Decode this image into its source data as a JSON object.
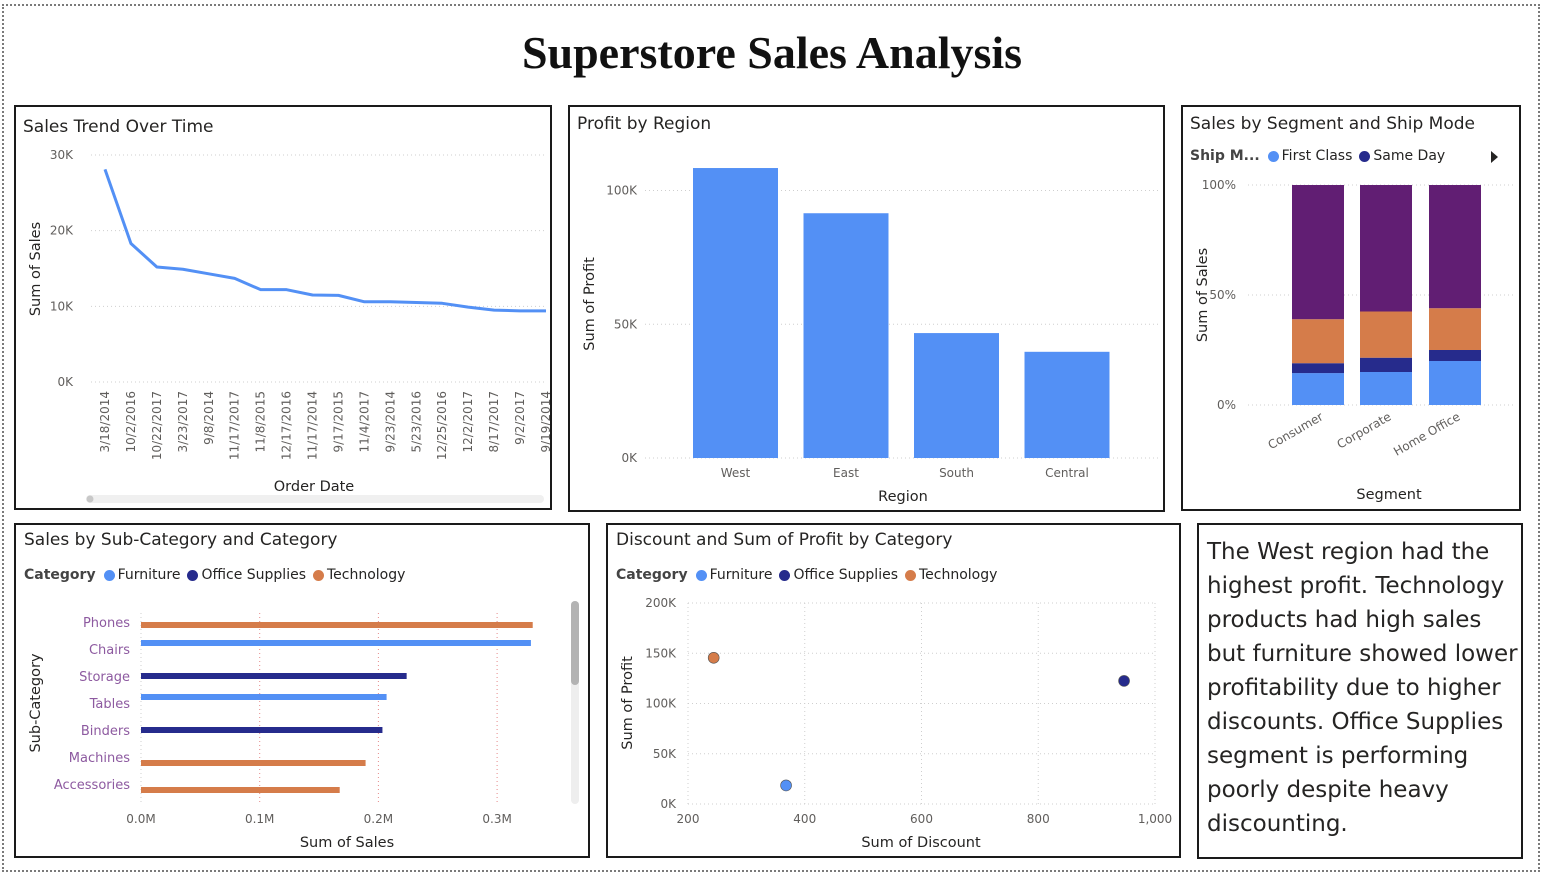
{
  "page_title": "Superstore Sales Analysis",
  "colors": {
    "blue": "#5390f5",
    "navy": "#262b8c",
    "orange": "#d57c4a",
    "purple": "#611e73",
    "axis_text": "#605e5c",
    "grid": "#dcdcdc"
  },
  "insight_text": "The West region had the highest profit. Technology products had high sales but furniture showed lower profitability due to higher discounts. Office Supplies segment is performing poorly despite heavy discounting.",
  "chart_data": [
    {
      "id": "sales_trend",
      "type": "line",
      "title": "Sales Trend Over Time",
      "xlabel": "Order Date",
      "ylabel": "Sum of Sales",
      "x": [
        "3/18/2014",
        "10/2/2016",
        "10/22/2017",
        "3/23/2017",
        "9/8/2014",
        "11/17/2017",
        "11/8/2015",
        "12/17/2016",
        "11/17/2014",
        "9/17/2015",
        "11/4/2017",
        "9/23/2014",
        "5/23/2016",
        "12/25/2016",
        "12/2/2017",
        "8/17/2017",
        "9/2/2017",
        "9/19/2014"
      ],
      "values": [
        28100,
        18300,
        15200,
        14900,
        14300,
        13700,
        12200,
        12200,
        11500,
        11450,
        10600,
        10600,
        10500,
        10400,
        9900,
        9500,
        9400,
        9400
      ],
      "yticks": [
        "0K",
        "10K",
        "20K",
        "30K"
      ],
      "ylim": [
        0,
        30000
      ],
      "grid": true
    },
    {
      "id": "profit_by_region",
      "type": "bar",
      "title": "Profit by Region",
      "xlabel": "Region",
      "ylabel": "Sum of Profit",
      "categories": [
        "West",
        "East",
        "South",
        "Central"
      ],
      "values": [
        108400,
        91500,
        46700,
        39700
      ],
      "yticks": [
        "0K",
        "50K",
        "100K"
      ],
      "ylim": [
        0,
        120000
      ],
      "grid": true
    },
    {
      "id": "segment_shipmode",
      "type": "bar",
      "stacked": "percent",
      "title": "Sales by Segment and Ship Mode",
      "xlabel": "Segment",
      "ylabel": "Sum of Sales",
      "legend_title": "Ship M...",
      "legend_visible": [
        "First Class",
        "Same Day"
      ],
      "categories": [
        "Consumer",
        "Corporate",
        "Home Office"
      ],
      "series": [
        {
          "name": "First Class",
          "color": "#5390f5",
          "values": [
            14.5,
            15.0,
            20.0
          ]
        },
        {
          "name": "Same Day",
          "color": "#262b8c",
          "values": [
            4.5,
            6.5,
            5.0
          ]
        },
        {
          "series_color": "#d57c4a",
          "values": [
            20.0,
            21.0,
            19.0
          ]
        },
        {
          "series_color": "#611e73",
          "values": [
            61.0,
            57.5,
            56.0
          ]
        }
      ],
      "yticks": [
        "0%",
        "50%",
        "100%"
      ]
    },
    {
      "id": "subcat_sales",
      "type": "bar",
      "orientation": "horizontal",
      "title": "Sales by Sub-Category and Category",
      "xlabel": "Sum of Sales",
      "ylabel": "Sub-Category",
      "legend_title": "Category",
      "legend": [
        "Furniture",
        "Office Supplies",
        "Technology"
      ],
      "categories": [
        "Phones",
        "Chairs",
        "Storage",
        "Tables",
        "Binders",
        "Machines",
        "Accessories"
      ],
      "bars": [
        {
          "sub": "Phones",
          "category": "Technology",
          "value": 330000
        },
        {
          "sub": "Chairs",
          "category": "Furniture",
          "value": 328500
        },
        {
          "sub": "Storage",
          "category": "Office Supplies",
          "value": 223800
        },
        {
          "sub": "Tables",
          "category": "Furniture",
          "value": 206900
        },
        {
          "sub": "Binders",
          "category": "Office Supplies",
          "value": 203400
        },
        {
          "sub": "Machines",
          "category": "Technology",
          "value": 189200
        },
        {
          "sub": "Accessories",
          "category": "Technology",
          "value": 167400
        }
      ],
      "xticks": [
        "0.0M",
        "0.1M",
        "0.2M",
        "0.3M"
      ],
      "xlim": [
        0,
        350000
      ]
    },
    {
      "id": "discount_profit",
      "type": "scatter",
      "title": "Discount and Sum of Profit by Category",
      "xlabel": "Sum of Discount",
      "ylabel": "Sum of Profit",
      "legend_title": "Category",
      "legend": [
        "Furniture",
        "Office Supplies",
        "Technology"
      ],
      "points": [
        {
          "category": "Technology",
          "x": 244,
          "y": 145500
        },
        {
          "category": "Office Supplies",
          "x": 947,
          "y": 122500
        },
        {
          "category": "Furniture",
          "x": 368,
          "y": 18500
        }
      ],
      "xticks": [
        "200",
        "400",
        "600",
        "800",
        "1,000"
      ],
      "yticks": [
        "0K",
        "50K",
        "100K",
        "150K",
        "200K"
      ],
      "xlim": [
        200,
        1000
      ],
      "ylim": [
        0,
        200000
      ]
    }
  ]
}
